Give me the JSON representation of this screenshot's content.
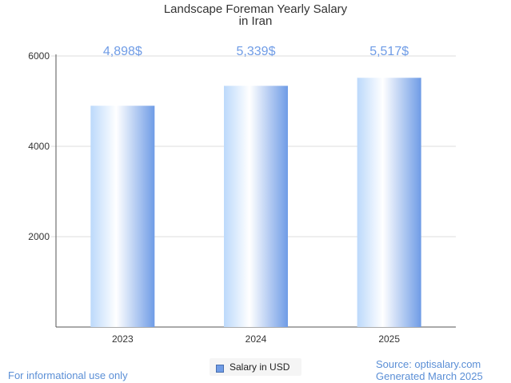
{
  "title_line1": "Landscape Foreman Yearly Salary",
  "title_line2": "in Iran",
  "chart_data": {
    "type": "bar",
    "categories": [
      "2023",
      "2024",
      "2025"
    ],
    "values": [
      4898,
      5339,
      5517
    ],
    "data_labels": [
      "4,898$",
      "5,339$",
      "5,517$"
    ],
    "ylim": [
      0,
      6000
    ],
    "yticks": [
      2000,
      4000,
      6000
    ],
    "grid": true,
    "legend": {
      "label": "Salary in USD",
      "placement": "bottom"
    },
    "colors": {
      "bar_light": "#ffffff",
      "bar_mid": "#bcd9fb",
      "bar_dark": "#6f9ce6",
      "label": "#6f9ce6",
      "grid": "#dddddd",
      "axis": "#555555"
    }
  },
  "footer": {
    "note": "For informational use only",
    "source": "Source: optisalary.com",
    "generated": "Generated March 2025"
  }
}
